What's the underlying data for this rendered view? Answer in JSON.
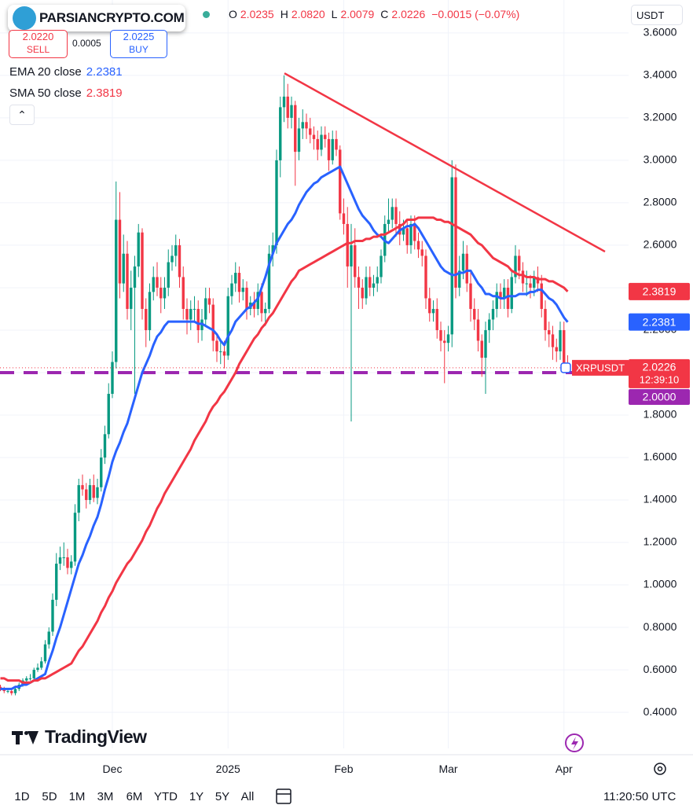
{
  "header": {
    "logo": "PARSIANCRYPTO.COM",
    "ohlc": [
      {
        "label": "O",
        "value": "2.0235"
      },
      {
        "label": "H",
        "value": "2.0820"
      },
      {
        "label": "L",
        "value": "2.0079"
      },
      {
        "label": "C",
        "value": "2.0226"
      }
    ],
    "change": "−0.0015 (−0.07%)",
    "currency": "USDT"
  },
  "trade": {
    "sell_price": "2.0220",
    "sell": "SELL",
    "spread": "0.0005",
    "buy_price": "2.0225",
    "buy": "BUY"
  },
  "brand": "TradingView",
  "toolbar": {
    "ranges": [
      "1D",
      "5D",
      "1M",
      "3M",
      "6M",
      "YTD",
      "1Y",
      "5Y",
      "All"
    ],
    "time": "11:20:50 UTC"
  },
  "chart_data": {
    "type": "candlestick",
    "symbol": "XRPUSDT",
    "countdown": "12:39:10",
    "up_color": "#089981",
    "down_color": "#f23645",
    "categories": [
      null,
      null,
      null,
      null,
      null,
      null,
      null,
      null,
      null,
      null,
      null,
      null,
      null,
      null,
      null,
      null,
      null,
      null,
      null,
      null,
      null,
      null,
      null,
      null,
      null,
      null,
      null,
      null,
      null,
      null,
      "Dec",
      null,
      null,
      null,
      null,
      null,
      null,
      null,
      null,
      null,
      null,
      null,
      null,
      null,
      null,
      null,
      null,
      null,
      null,
      null,
      null,
      null,
      null,
      null,
      null,
      null,
      null,
      null,
      null,
      null,
      null,
      "2025",
      null,
      null,
      null,
      null,
      null,
      null,
      null,
      null,
      null,
      null,
      null,
      null,
      null,
      null,
      null,
      null,
      null,
      null,
      null,
      null,
      null,
      null,
      null,
      null,
      null,
      null,
      null,
      null,
      null,
      null,
      "Feb",
      null,
      null,
      null,
      null,
      null,
      null,
      null,
      null,
      null,
      null,
      null,
      null,
      null,
      null,
      null,
      null,
      null,
      null,
      null,
      null,
      null,
      null,
      null,
      null,
      null,
      null,
      null,
      "Mar",
      null,
      null,
      null,
      null,
      null,
      null,
      null,
      null,
      null,
      null,
      null,
      null,
      null,
      null,
      null,
      null,
      null,
      null,
      null,
      null,
      null,
      null,
      null,
      null,
      null,
      null,
      null,
      null,
      null,
      null,
      "Apr",
      null
    ],
    "open": [
      0.52,
      0.51,
      0.5,
      0.5,
      0.49,
      0.51,
      0.53,
      0.55,
      0.56,
      0.56,
      0.6,
      0.61,
      0.64,
      0.72,
      0.78,
      0.93,
      1.1,
      1.13,
      1.13,
      1.08,
      1.11,
      1.34,
      1.47,
      1.45,
      1.4,
      1.47,
      1.41,
      1.46,
      1.6,
      1.71,
      1.9,
      2.05,
      2.72,
      2.42,
      2.56,
      2.3,
      2.4,
      2.5,
      2.66,
      2.3,
      2.2,
      2.38,
      2.45,
      2.4,
      2.35,
      2.4,
      2.52,
      2.55,
      2.6,
      2.45,
      2.3,
      2.25,
      2.3,
      2.3,
      2.2,
      2.25,
      2.35,
      2.32,
      2.15,
      2.1,
      2.1,
      2.08,
      2.36,
      2.42,
      2.47,
      2.38,
      2.4,
      2.3,
      2.33,
      2.3,
      2.38,
      2.28,
      2.3,
      2.56,
      2.6,
      3.0,
      3.25,
      3.3,
      3.2,
      3.26,
      3.04,
      3.15,
      3.18,
      3.15,
      3.12,
      3.1,
      3.05,
      3.12,
      3.1,
      3.0,
      3.1,
      3.05,
      2.75,
      2.7,
      2.5,
      2.6,
      2.45,
      2.4,
      2.35,
      2.45,
      2.4,
      2.42,
      2.45,
      2.55,
      2.7,
      2.72,
      2.78,
      2.7,
      2.65,
      2.68,
      2.6,
      2.7,
      2.62,
      2.58,
      2.55,
      2.35,
      2.28,
      2.3,
      2.2,
      2.15,
      2.14,
      2.18,
      2.92,
      2.4,
      2.48,
      2.56,
      2.42,
      2.3,
      2.25,
      2.15,
      2.07,
      2.2,
      2.25,
      2.3,
      2.38,
      2.35,
      2.4,
      2.3,
      2.45,
      2.55,
      2.48,
      2.42,
      2.42,
      2.4,
      2.45,
      2.42,
      2.3,
      2.2,
      2.18,
      2.12,
      2.1,
      2.2,
      2.0235
    ],
    "high": [
      0.53,
      0.52,
      0.51,
      0.51,
      0.52,
      0.54,
      0.56,
      0.57,
      0.58,
      0.61,
      0.63,
      0.66,
      0.74,
      0.8,
      0.96,
      1.15,
      1.18,
      1.2,
      1.17,
      1.14,
      1.38,
      1.5,
      1.52,
      1.48,
      1.5,
      1.52,
      1.5,
      1.64,
      1.75,
      1.95,
      2.1,
      2.9,
      2.85,
      2.65,
      2.62,
      2.48,
      2.55,
      2.7,
      2.68,
      2.35,
      2.42,
      2.5,
      2.52,
      2.45,
      2.45,
      2.58,
      2.6,
      2.65,
      2.63,
      2.5,
      2.35,
      2.34,
      2.36,
      2.34,
      2.3,
      2.4,
      2.4,
      2.35,
      2.18,
      2.16,
      2.15,
      2.4,
      2.46,
      2.52,
      2.5,
      2.44,
      2.43,
      2.36,
      2.38,
      2.42,
      2.42,
      2.33,
      2.6,
      2.66,
      3.05,
      3.3,
      3.4,
      3.36,
      3.3,
      3.28,
      3.2,
      3.24,
      3.22,
      3.2,
      3.16,
      3.14,
      3.16,
      3.16,
      3.13,
      3.14,
      3.14,
      3.07,
      2.82,
      2.78,
      2.7,
      2.68,
      2.5,
      2.44,
      2.5,
      2.5,
      2.46,
      2.5,
      2.58,
      2.74,
      2.82,
      2.82,
      2.82,
      2.76,
      2.72,
      2.72,
      2.74,
      2.74,
      2.66,
      2.62,
      2.58,
      2.4,
      2.34,
      2.35,
      2.24,
      2.2,
      2.22,
      3.0,
      2.98,
      2.55,
      2.62,
      2.6,
      2.48,
      2.35,
      2.3,
      2.18,
      2.24,
      2.28,
      2.34,
      2.42,
      2.42,
      2.44,
      2.44,
      2.48,
      2.6,
      2.58,
      2.52,
      2.48,
      2.46,
      2.48,
      2.5,
      2.46,
      2.34,
      2.24,
      2.22,
      2.16,
      2.24,
      2.24,
      2.082
    ],
    "low": [
      0.5,
      0.49,
      0.49,
      0.48,
      0.48,
      0.5,
      0.52,
      0.54,
      0.55,
      0.55,
      0.59,
      0.6,
      0.63,
      0.7,
      0.76,
      0.9,
      1.07,
      1.09,
      1.05,
      1.05,
      1.09,
      1.3,
      1.42,
      1.36,
      1.38,
      1.39,
      1.38,
      1.44,
      1.57,
      1.69,
      1.88,
      2.02,
      2.35,
      2.38,
      2.25,
      2.2,
      1.9,
      2.45,
      2.25,
      2.12,
      2.15,
      2.34,
      2.36,
      2.28,
      2.3,
      2.36,
      2.48,
      2.5,
      2.4,
      2.25,
      2.18,
      2.2,
      2.24,
      2.14,
      2.15,
      2.22,
      2.28,
      2.1,
      2.05,
      2.04,
      2.02,
      2.06,
      2.32,
      2.38,
      2.33,
      2.34,
      2.25,
      2.27,
      2.26,
      2.27,
      2.24,
      2.22,
      2.28,
      2.5,
      2.56,
      2.92,
      3.18,
      3.15,
      3.15,
      2.88,
      3.0,
      3.1,
      3.1,
      3.08,
      3.05,
      3.0,
      3.02,
      3.06,
      2.95,
      2.98,
      3.02,
      2.72,
      2.65,
      2.4,
      1.77,
      2.4,
      2.3,
      2.3,
      2.32,
      2.36,
      2.36,
      2.38,
      2.42,
      2.52,
      2.66,
      2.68,
      2.64,
      2.6,
      2.62,
      2.56,
      2.56,
      2.58,
      2.54,
      2.5,
      2.3,
      2.24,
      2.24,
      2.16,
      2.1,
      1.95,
      2.1,
      2.12,
      2.35,
      2.36,
      2.44,
      2.38,
      2.24,
      2.2,
      2.1,
      1.98,
      1.9,
      2.14,
      2.2,
      2.26,
      2.3,
      2.3,
      2.26,
      2.28,
      2.42,
      2.44,
      2.38,
      2.36,
      2.35,
      2.36,
      2.38,
      2.26,
      2.15,
      2.12,
      2.06,
      2.05,
      2.06,
      2.0,
      2.0079
    ],
    "close": [
      0.51,
      0.5,
      0.5,
      0.49,
      0.51,
      0.53,
      0.55,
      0.56,
      0.56,
      0.6,
      0.61,
      0.64,
      0.72,
      0.78,
      0.93,
      1.1,
      1.13,
      1.13,
      1.08,
      1.11,
      1.34,
      1.47,
      1.45,
      1.4,
      1.47,
      1.41,
      1.46,
      1.6,
      1.71,
      1.9,
      2.05,
      2.72,
      2.42,
      2.56,
      2.3,
      2.4,
      2.5,
      2.66,
      2.3,
      2.2,
      2.38,
      2.45,
      2.4,
      2.35,
      2.4,
      2.52,
      2.55,
      2.6,
      2.45,
      2.3,
      2.25,
      2.3,
      2.3,
      2.2,
      2.25,
      2.35,
      2.32,
      2.15,
      2.1,
      2.1,
      2.08,
      2.36,
      2.42,
      2.47,
      2.38,
      2.4,
      2.3,
      2.33,
      2.3,
      2.38,
      2.28,
      2.3,
      2.56,
      2.6,
      3.0,
      3.25,
      3.3,
      3.2,
      3.26,
      3.04,
      3.15,
      3.18,
      3.15,
      3.12,
      3.1,
      3.05,
      3.12,
      3.1,
      3.0,
      3.1,
      3.05,
      2.75,
      2.7,
      2.5,
      2.6,
      2.45,
      2.4,
      2.35,
      2.45,
      2.4,
      2.42,
      2.45,
      2.55,
      2.7,
      2.72,
      2.78,
      2.7,
      2.65,
      2.68,
      2.6,
      2.7,
      2.62,
      2.58,
      2.55,
      2.35,
      2.28,
      2.3,
      2.2,
      2.15,
      2.14,
      2.18,
      2.92,
      2.4,
      2.48,
      2.56,
      2.42,
      2.3,
      2.25,
      2.15,
      2.07,
      2.2,
      2.25,
      2.3,
      2.38,
      2.35,
      2.4,
      2.3,
      2.45,
      2.55,
      2.48,
      2.42,
      2.42,
      2.4,
      2.45,
      2.42,
      2.3,
      2.2,
      2.18,
      2.12,
      2.1,
      2.2,
      2.0241,
      2.0226
    ],
    "series": [
      {
        "name": "EMA 20 close",
        "color": "#2962ff",
        "values": [
          0.51,
          0.51,
          0.51,
          0.51,
          0.52,
          0.52,
          0.53,
          0.53,
          0.54,
          0.55,
          0.56,
          0.57,
          0.58,
          0.64,
          0.69,
          0.75,
          0.8,
          0.86,
          0.92,
          0.98,
          1.04,
          1.1,
          1.14,
          1.19,
          1.23,
          1.28,
          1.32,
          1.38,
          1.45,
          1.51,
          1.58,
          1.63,
          1.67,
          1.72,
          1.76,
          1.82,
          1.88,
          1.94,
          2.0,
          2.04,
          2.08,
          2.13,
          2.17,
          2.19,
          2.22,
          2.24,
          2.24,
          2.24,
          2.24,
          2.24,
          2.24,
          2.24,
          2.24,
          2.23,
          2.23,
          2.22,
          2.21,
          2.2,
          2.18,
          2.15,
          2.13,
          2.17,
          2.2,
          2.24,
          2.26,
          2.28,
          2.3,
          2.31,
          2.33,
          2.35,
          2.4,
          2.45,
          2.51,
          2.56,
          2.61,
          2.64,
          2.67,
          2.7,
          2.72,
          2.75,
          2.79,
          2.82,
          2.85,
          2.87,
          2.89,
          2.9,
          2.92,
          2.93,
          2.94,
          2.95,
          2.96,
          2.97,
          2.93,
          2.89,
          2.85,
          2.81,
          2.77,
          2.74,
          2.72,
          2.7,
          2.67,
          2.65,
          2.64,
          2.62,
          2.61,
          2.63,
          2.65,
          2.67,
          2.68,
          2.69,
          2.69,
          2.7,
          2.68,
          2.65,
          2.62,
          2.59,
          2.56,
          2.53,
          2.5,
          2.48,
          2.47,
          2.46,
          2.46,
          2.47,
          2.47,
          2.48,
          2.48,
          2.45,
          2.42,
          2.4,
          2.37,
          2.37,
          2.36,
          2.36,
          2.35,
          2.35,
          2.36,
          2.36,
          2.36,
          2.37,
          2.37,
          2.37,
          2.38,
          2.38,
          2.39,
          2.39,
          2.37,
          2.35,
          2.34,
          2.32,
          2.29,
          2.26,
          2.2381
        ]
      },
      {
        "name": "SMA 50 close",
        "color": "#f23645",
        "values": [
          0.56,
          0.56,
          0.55,
          0.55,
          0.55,
          0.55,
          0.54,
          0.54,
          0.54,
          0.55,
          0.55,
          0.56,
          0.56,
          0.57,
          0.58,
          0.59,
          0.6,
          0.61,
          0.62,
          0.63,
          0.66,
          0.69,
          0.71,
          0.74,
          0.77,
          0.8,
          0.83,
          0.87,
          0.9,
          0.94,
          0.97,
          1.01,
          1.04,
          1.07,
          1.1,
          1.12,
          1.15,
          1.18,
          1.21,
          1.25,
          1.28,
          1.32,
          1.36,
          1.39,
          1.43,
          1.46,
          1.49,
          1.52,
          1.55,
          1.58,
          1.61,
          1.64,
          1.68,
          1.71,
          1.74,
          1.77,
          1.81,
          1.84,
          1.86,
          1.89,
          1.91,
          1.94,
          1.97,
          2.0,
          2.04,
          2.07,
          2.1,
          2.13,
          2.16,
          2.18,
          2.21,
          2.23,
          2.26,
          2.28,
          2.31,
          2.34,
          2.37,
          2.4,
          2.43,
          2.45,
          2.48,
          2.49,
          2.5,
          2.51,
          2.52,
          2.53,
          2.54,
          2.55,
          2.56,
          2.57,
          2.58,
          2.59,
          2.6,
          2.61,
          2.61,
          2.62,
          2.62,
          2.62,
          2.63,
          2.63,
          2.64,
          2.64,
          2.65,
          2.65,
          2.66,
          2.67,
          2.68,
          2.69,
          2.7,
          2.72,
          2.72,
          2.72,
          2.73,
          2.73,
          2.73,
          2.73,
          2.73,
          2.72,
          2.72,
          2.71,
          2.71,
          2.7,
          2.69,
          2.68,
          2.67,
          2.66,
          2.65,
          2.63,
          2.61,
          2.6,
          2.58,
          2.56,
          2.54,
          2.53,
          2.52,
          2.51,
          2.5,
          2.48,
          2.47,
          2.46,
          2.46,
          2.45,
          2.45,
          2.45,
          2.44,
          2.44,
          2.44,
          2.43,
          2.43,
          2.42,
          2.41,
          2.4,
          2.3819
        ]
      }
    ],
    "trendline": {
      "values": [
        3.41,
        2.57
      ],
      "color": "#f23645"
    },
    "level": {
      "value": 2.0,
      "label": "2.0000",
      "color": "#9c27b0"
    },
    "ylim": [
      0.23,
      3.755
    ],
    "yticks": [
      {
        "value": 0.4,
        "label": "0.4000"
      },
      {
        "value": 0.6,
        "label": "0.6000"
      },
      {
        "value": 0.8,
        "label": "0.8000"
      },
      {
        "value": 1.0,
        "label": "1.0000"
      },
      {
        "value": 1.2,
        "label": "1.2000"
      },
      {
        "value": 1.4,
        "label": "1.4000"
      },
      {
        "value": 1.6,
        "label": "1.6000"
      },
      {
        "value": 1.8,
        "label": "1.8000"
      },
      {
        "value": 2.0,
        "label": "2.0000"
      },
      {
        "value": 2.2,
        "label": "2.2000"
      },
      {
        "value": 2.4,
        "label": "2.4000"
      },
      {
        "value": 2.6,
        "label": "2.6000"
      },
      {
        "value": 2.8,
        "label": "2.8000"
      },
      {
        "value": 3.0,
        "label": "3.0000"
      },
      {
        "value": 3.2,
        "label": "3.2000"
      },
      {
        "value": 3.4,
        "label": "3.4000"
      },
      {
        "value": 3.6,
        "label": "3.6000"
      }
    ],
    "grid": true
  }
}
